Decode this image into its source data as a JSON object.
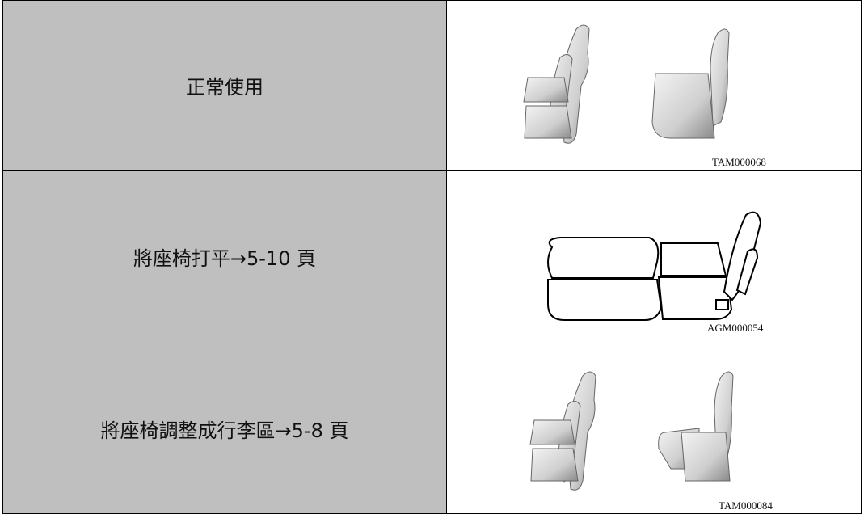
{
  "table": {
    "rows": [
      {
        "label": "正常使用",
        "image_code": "TAM000068"
      },
      {
        "label": "將座椅打平→5-10 頁",
        "image_code": "AGM000054"
      },
      {
        "label": "將座椅調整成行李區→5-8 頁",
        "image_code": "TAM000084"
      }
    ]
  }
}
